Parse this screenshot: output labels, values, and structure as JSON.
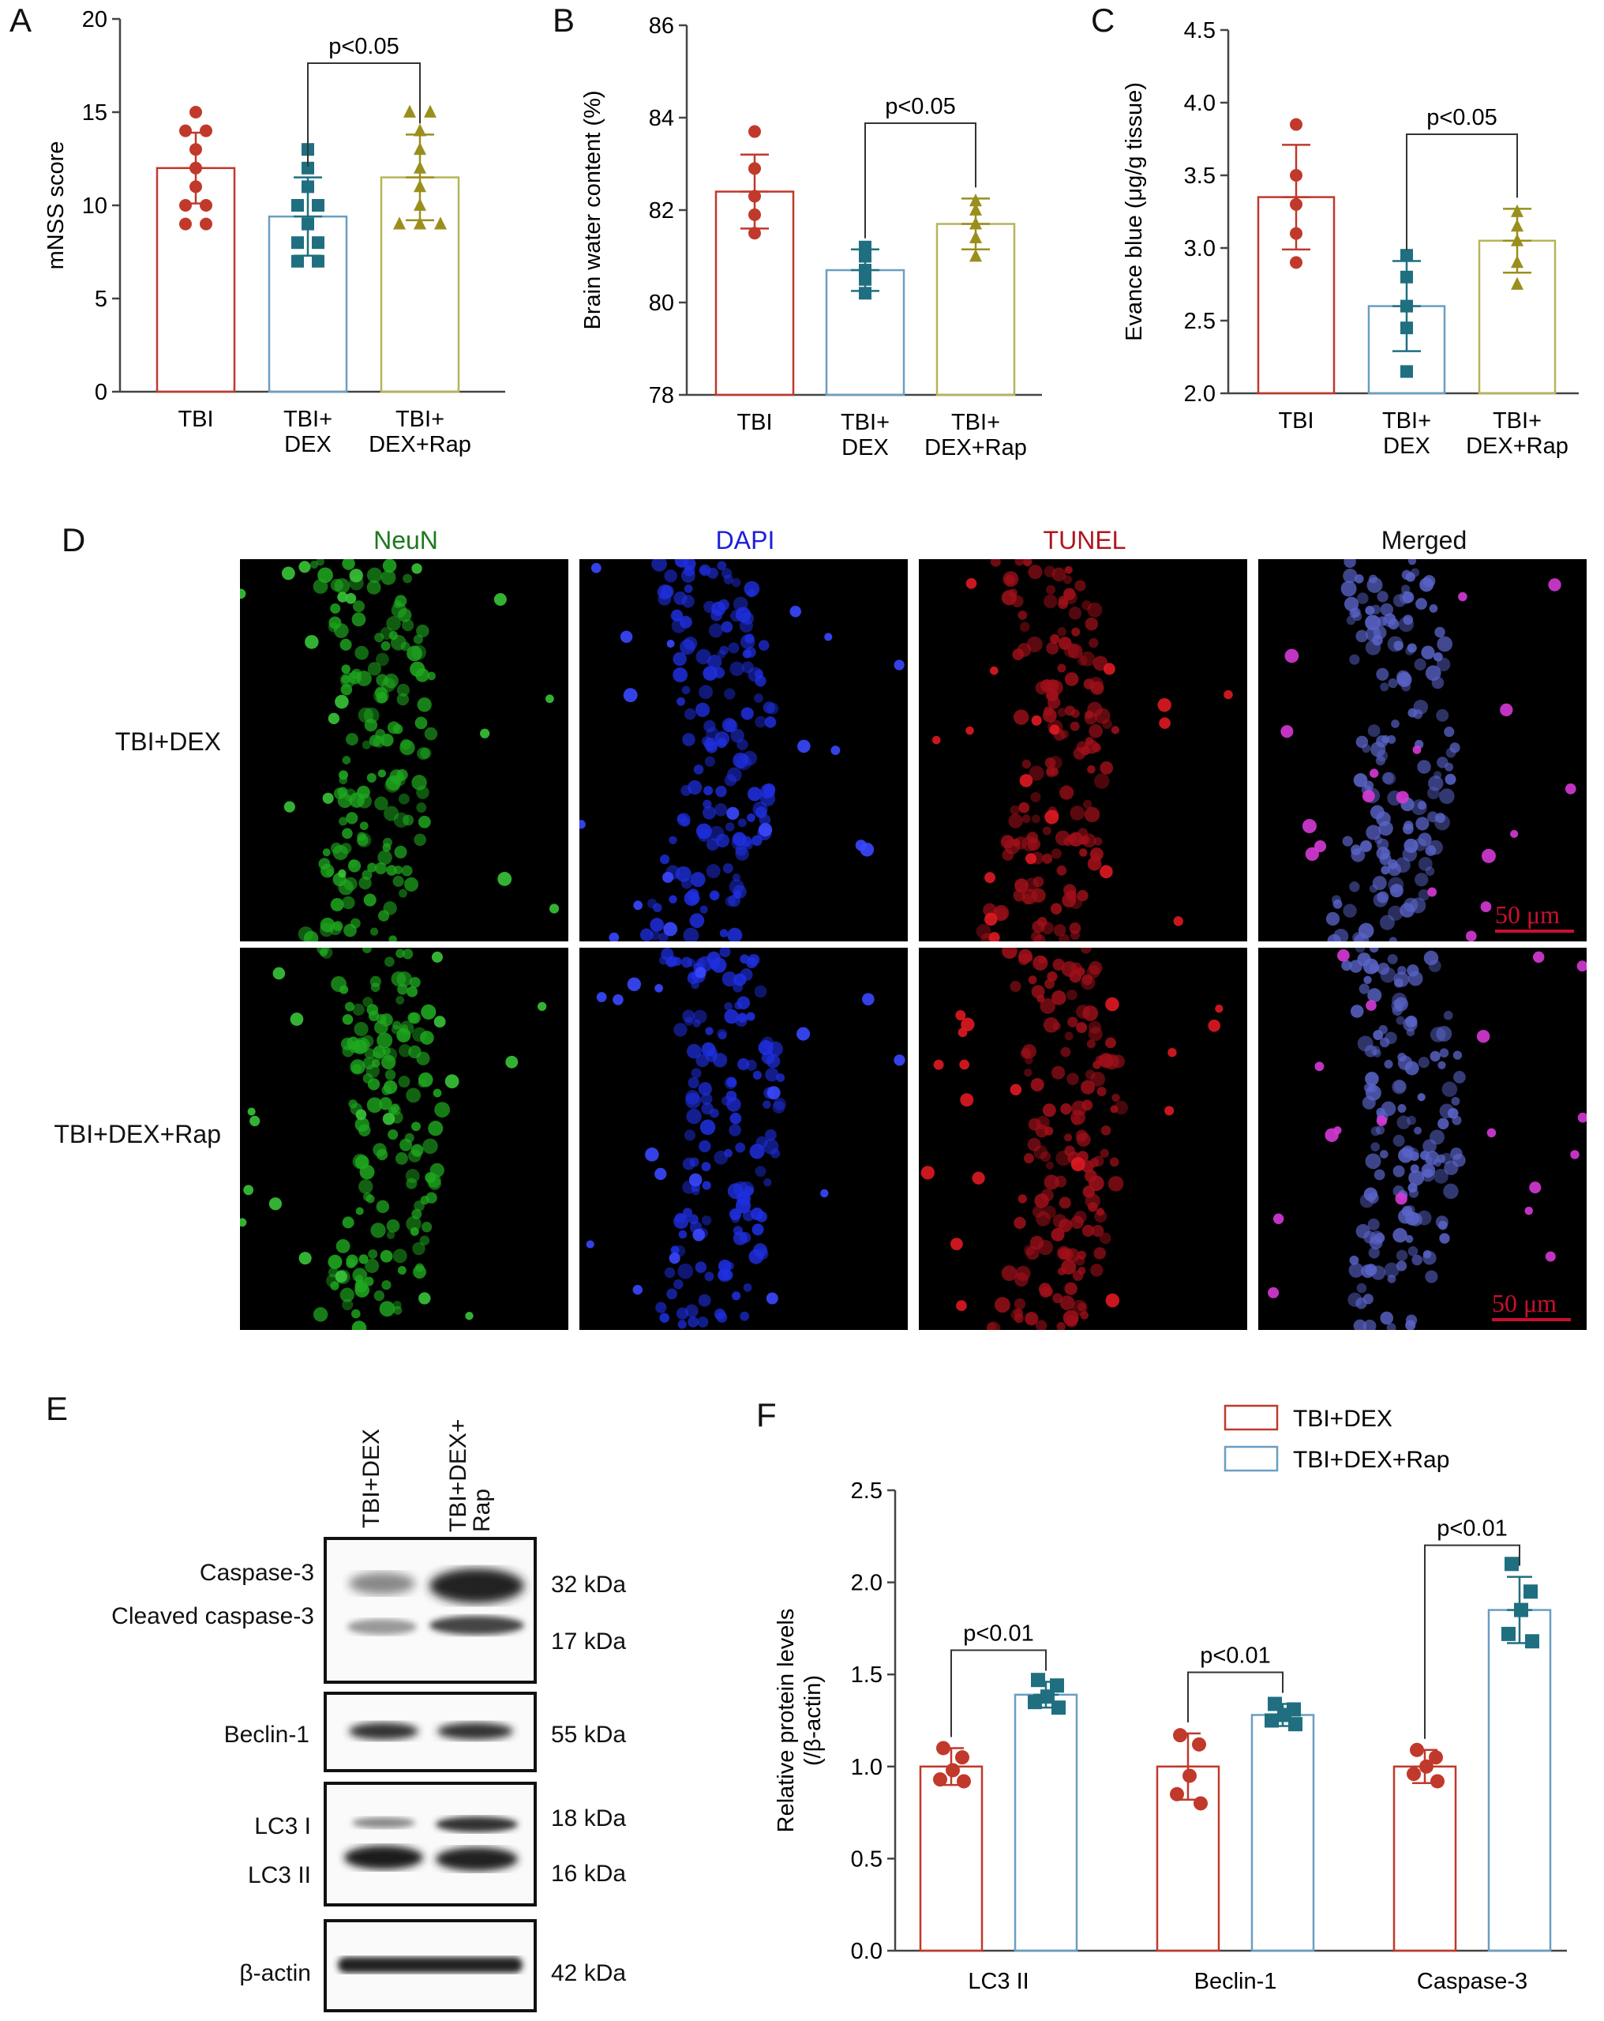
{
  "panels": {
    "A": {
      "letter": "A"
    },
    "B": {
      "letter": "B"
    },
    "C": {
      "letter": "C"
    },
    "D": {
      "letter": "D"
    },
    "E": {
      "letter": "E"
    },
    "F": {
      "letter": "F"
    }
  },
  "colors": {
    "tbi": "#c0392b",
    "dex": "#1f6f80",
    "rap": "#9a8f1c",
    "bar_dex": "#6a9ec2",
    "bar_rap": "#b7b45a"
  },
  "chart_data": [
    {
      "id": "A",
      "type": "bar",
      "categories": [
        [
          "TBI"
        ],
        [
          "TBI+",
          "DEX"
        ],
        [
          "TBI+",
          "DEX+Rap"
        ]
      ],
      "values": [
        12.0,
        9.4,
        11.5
      ],
      "sd": [
        1.9,
        2.1,
        2.3
      ],
      "points": [
        [
          15,
          14,
          14,
          13,
          12,
          11,
          10,
          10,
          9,
          9
        ],
        [
          13,
          12,
          11,
          10,
          9,
          8,
          8,
          7,
          7,
          10
        ],
        [
          15,
          15,
          14,
          13,
          12,
          11,
          10,
          9,
          9,
          9
        ]
      ],
      "ylabel": "mNSS score",
      "ylim": [
        0,
        20
      ],
      "yticks": [
        0,
        5,
        10,
        15,
        20
      ],
      "annotation": "p<0.05",
      "compare": [
        1,
        2
      ]
    },
    {
      "id": "B",
      "type": "bar",
      "categories": [
        [
          "TBI"
        ],
        [
          "TBI+",
          "DEX"
        ],
        [
          "TBI+",
          "DEX+Rap"
        ]
      ],
      "values": [
        82.4,
        80.7,
        81.7
      ],
      "sd": [
        0.8,
        0.45,
        0.55
      ],
      "points": [
        [
          83.7,
          82.9,
          82.3,
          81.9,
          81.5
        ],
        [
          81.2,
          81.0,
          80.7,
          80.5,
          80.2
        ],
        [
          82.2,
          82.0,
          81.7,
          81.4,
          81.0
        ]
      ],
      "ylabel": "Brain water content (%)",
      "ylim": [
        78,
        86
      ],
      "yticks": [
        78,
        80,
        82,
        84,
        86
      ],
      "annotation": "p<0.05",
      "compare": [
        1,
        2
      ]
    },
    {
      "id": "C",
      "type": "bar",
      "categories": [
        [
          "TBI"
        ],
        [
          "TBI+",
          "DEX"
        ],
        [
          "TBI+",
          "DEX+Rap"
        ]
      ],
      "values": [
        3.35,
        2.6,
        3.05
      ],
      "sd": [
        0.36,
        0.31,
        0.22
      ],
      "points": [
        [
          3.85,
          3.5,
          3.3,
          3.1,
          2.9
        ],
        [
          2.95,
          2.8,
          2.6,
          2.45,
          2.15
        ],
        [
          3.25,
          3.15,
          3.05,
          2.9,
          2.75
        ]
      ],
      "ylabel": "Evance blue (μg/g tissue)",
      "ylim": [
        2.0,
        4.5
      ],
      "yticks": [
        "2.0",
        "2.5",
        "3.0",
        "3.5",
        "4.0",
        "4.5"
      ],
      "annotation": "p<0.05",
      "compare": [
        1,
        2
      ]
    },
    {
      "id": "F",
      "type": "bar",
      "categories": [
        "LC3 II",
        "Beclin-1",
        "Caspase-3"
      ],
      "series": [
        {
          "name": "TBI+DEX",
          "values": [
            1.0,
            1.0,
            1.0
          ],
          "sd": [
            0.1,
            0.18,
            0.09
          ],
          "points": [
            [
              1.1,
              1.05,
              0.98,
              0.93,
              0.92
            ],
            [
              1.17,
              1.12,
              0.95,
              0.85,
              0.8
            ],
            [
              1.09,
              1.05,
              1.0,
              0.96,
              0.92
            ]
          ]
        },
        {
          "name": "TBI+DEX+Rap",
          "values": [
            1.39,
            1.28,
            1.85
          ],
          "sd": [
            0.07,
            0.06,
            0.18
          ],
          "points": [
            [
              1.47,
              1.44,
              1.38,
              1.35,
              1.32
            ],
            [
              1.34,
              1.31,
              1.28,
              1.25,
              1.23
            ],
            [
              2.1,
              1.95,
              1.85,
              1.72,
              1.68
            ]
          ]
        }
      ],
      "ylabel": [
        "Relative protein levels",
        "(/β-actin)"
      ],
      "ylim": [
        0,
        2.5
      ],
      "yticks": [
        "0.0",
        "0.5",
        "1.0",
        "1.5",
        "2.0",
        "2.5"
      ],
      "annotations": [
        "p<0.01",
        "p<0.01",
        "p<0.01"
      ]
    }
  ],
  "microscopy": {
    "columns": [
      "NeuN",
      "DAPI",
      "TUNEL",
      "Merged"
    ],
    "rows": [
      "TBI+DEX",
      "TBI+DEX+Rap"
    ],
    "scale_bar": "50 μm"
  },
  "western": {
    "lanes": [
      "TBI+DEX",
      "TBI+DEX+\nRap"
    ],
    "blots": [
      {
        "labels": [
          "Caspase-3",
          "Cleaved caspase-3"
        ],
        "kda": [
          "32 kDa",
          "17 kDa"
        ]
      },
      {
        "labels": [
          "Beclin-1"
        ],
        "kda": [
          "55 kDa"
        ]
      },
      {
        "labels": [
          "LC3 I",
          "LC3 II"
        ],
        "kda": [
          "18 kDa",
          "16 kDa"
        ]
      },
      {
        "labels": [
          "β-actin"
        ],
        "kda": [
          "42 kDa"
        ]
      }
    ]
  }
}
